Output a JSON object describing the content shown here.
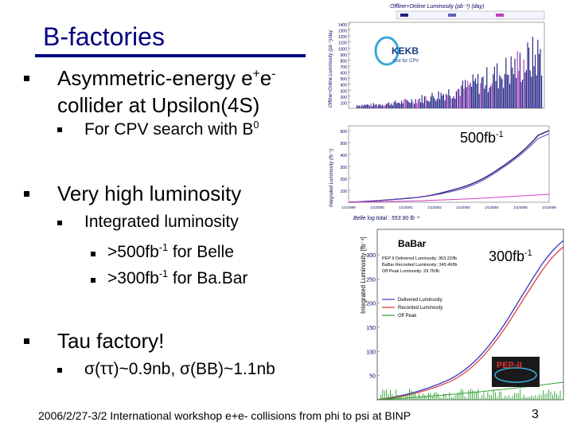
{
  "slide": {
    "title": "B-factories",
    "footer": "2006/2/27-3/2 International workshop e+e- collisions from phi to psi at BINP",
    "page_number": "3"
  },
  "bullets": {
    "b1_line1": "Asymmetric-energy e",
    "b1_sup1": "+",
    "b1_mid": "e",
    "b1_sup2": "-",
    "b1_line2": "collider at Upsilon(4S)",
    "b1_sub1": "For CPV search with B",
    "b1_sub1_sup": "0",
    "b2": "Very high luminosity",
    "b2_sub1": "Integrated luminosity",
    "b2_subsub1": ">500fb",
    "b2_subsub1_sup": "-1",
    "b2_subsub1_tail": " for Belle",
    "b2_subsub2": ">300fb",
    "b2_subsub2_sup": "-1",
    "b2_subsub2_tail": " for Ba.Bar",
    "b3": "Tau factory!",
    "b3_sub1": "σ(ττ)~0.9nb, σ(BB)~1.1nb"
  },
  "annotations": {
    "belle_value": "500fb",
    "belle_value_sup": "-1",
    "babar_value": "300fb",
    "babar_value_sup": "-1"
  },
  "belle_daily": {
    "title": "Offline+Online Luminosity (pb⁻¹) (day)",
    "ylabel": "Offline+Online Luminosity (pb⁻¹)/day",
    "logo": "KEKB",
    "logo_sub": "test for CPV",
    "yticks": [
      "1400",
      "1300",
      "1200",
      "1100",
      "1000",
      "900",
      "800",
      "700",
      "600",
      "500",
      "400",
      "300",
      "200",
      "100"
    ]
  },
  "belle_integrated": {
    "ylabel": "Integrated Luminosity (fb⁻¹)",
    "yticks": [
      "600",
      "500",
      "400",
      "300",
      "200",
      "100"
    ],
    "xticks": [
      "1/1/1999",
      "1/1/2000",
      "1/1/2001",
      "1/1/2002",
      "1/1/2003",
      "1/1/2004",
      "1/1/2005",
      "1/1/2006"
    ],
    "total": "Belle log total : 553.90 fb⁻¹"
  },
  "babar": {
    "title": "BaBar",
    "ylabel": "Integrated Luminosity [fb⁻¹]",
    "yticks": [
      "300",
      "250",
      "200",
      "150",
      "100",
      "50"
    ],
    "info": [
      "PEP II Delivered Luminosity: 363.22/fb",
      "BaBar Recorded Luminosity: 345.49/fb",
      "Off Peak Luminosity: 29.76/fb"
    ],
    "legend": [
      "Delivered Luminosity",
      "Recorded Luminosity",
      "Off Peak"
    ],
    "logo": "PEP-II",
    "legend_colors": [
      "#4040c0",
      "#e03030",
      "#30a030"
    ]
  }
}
